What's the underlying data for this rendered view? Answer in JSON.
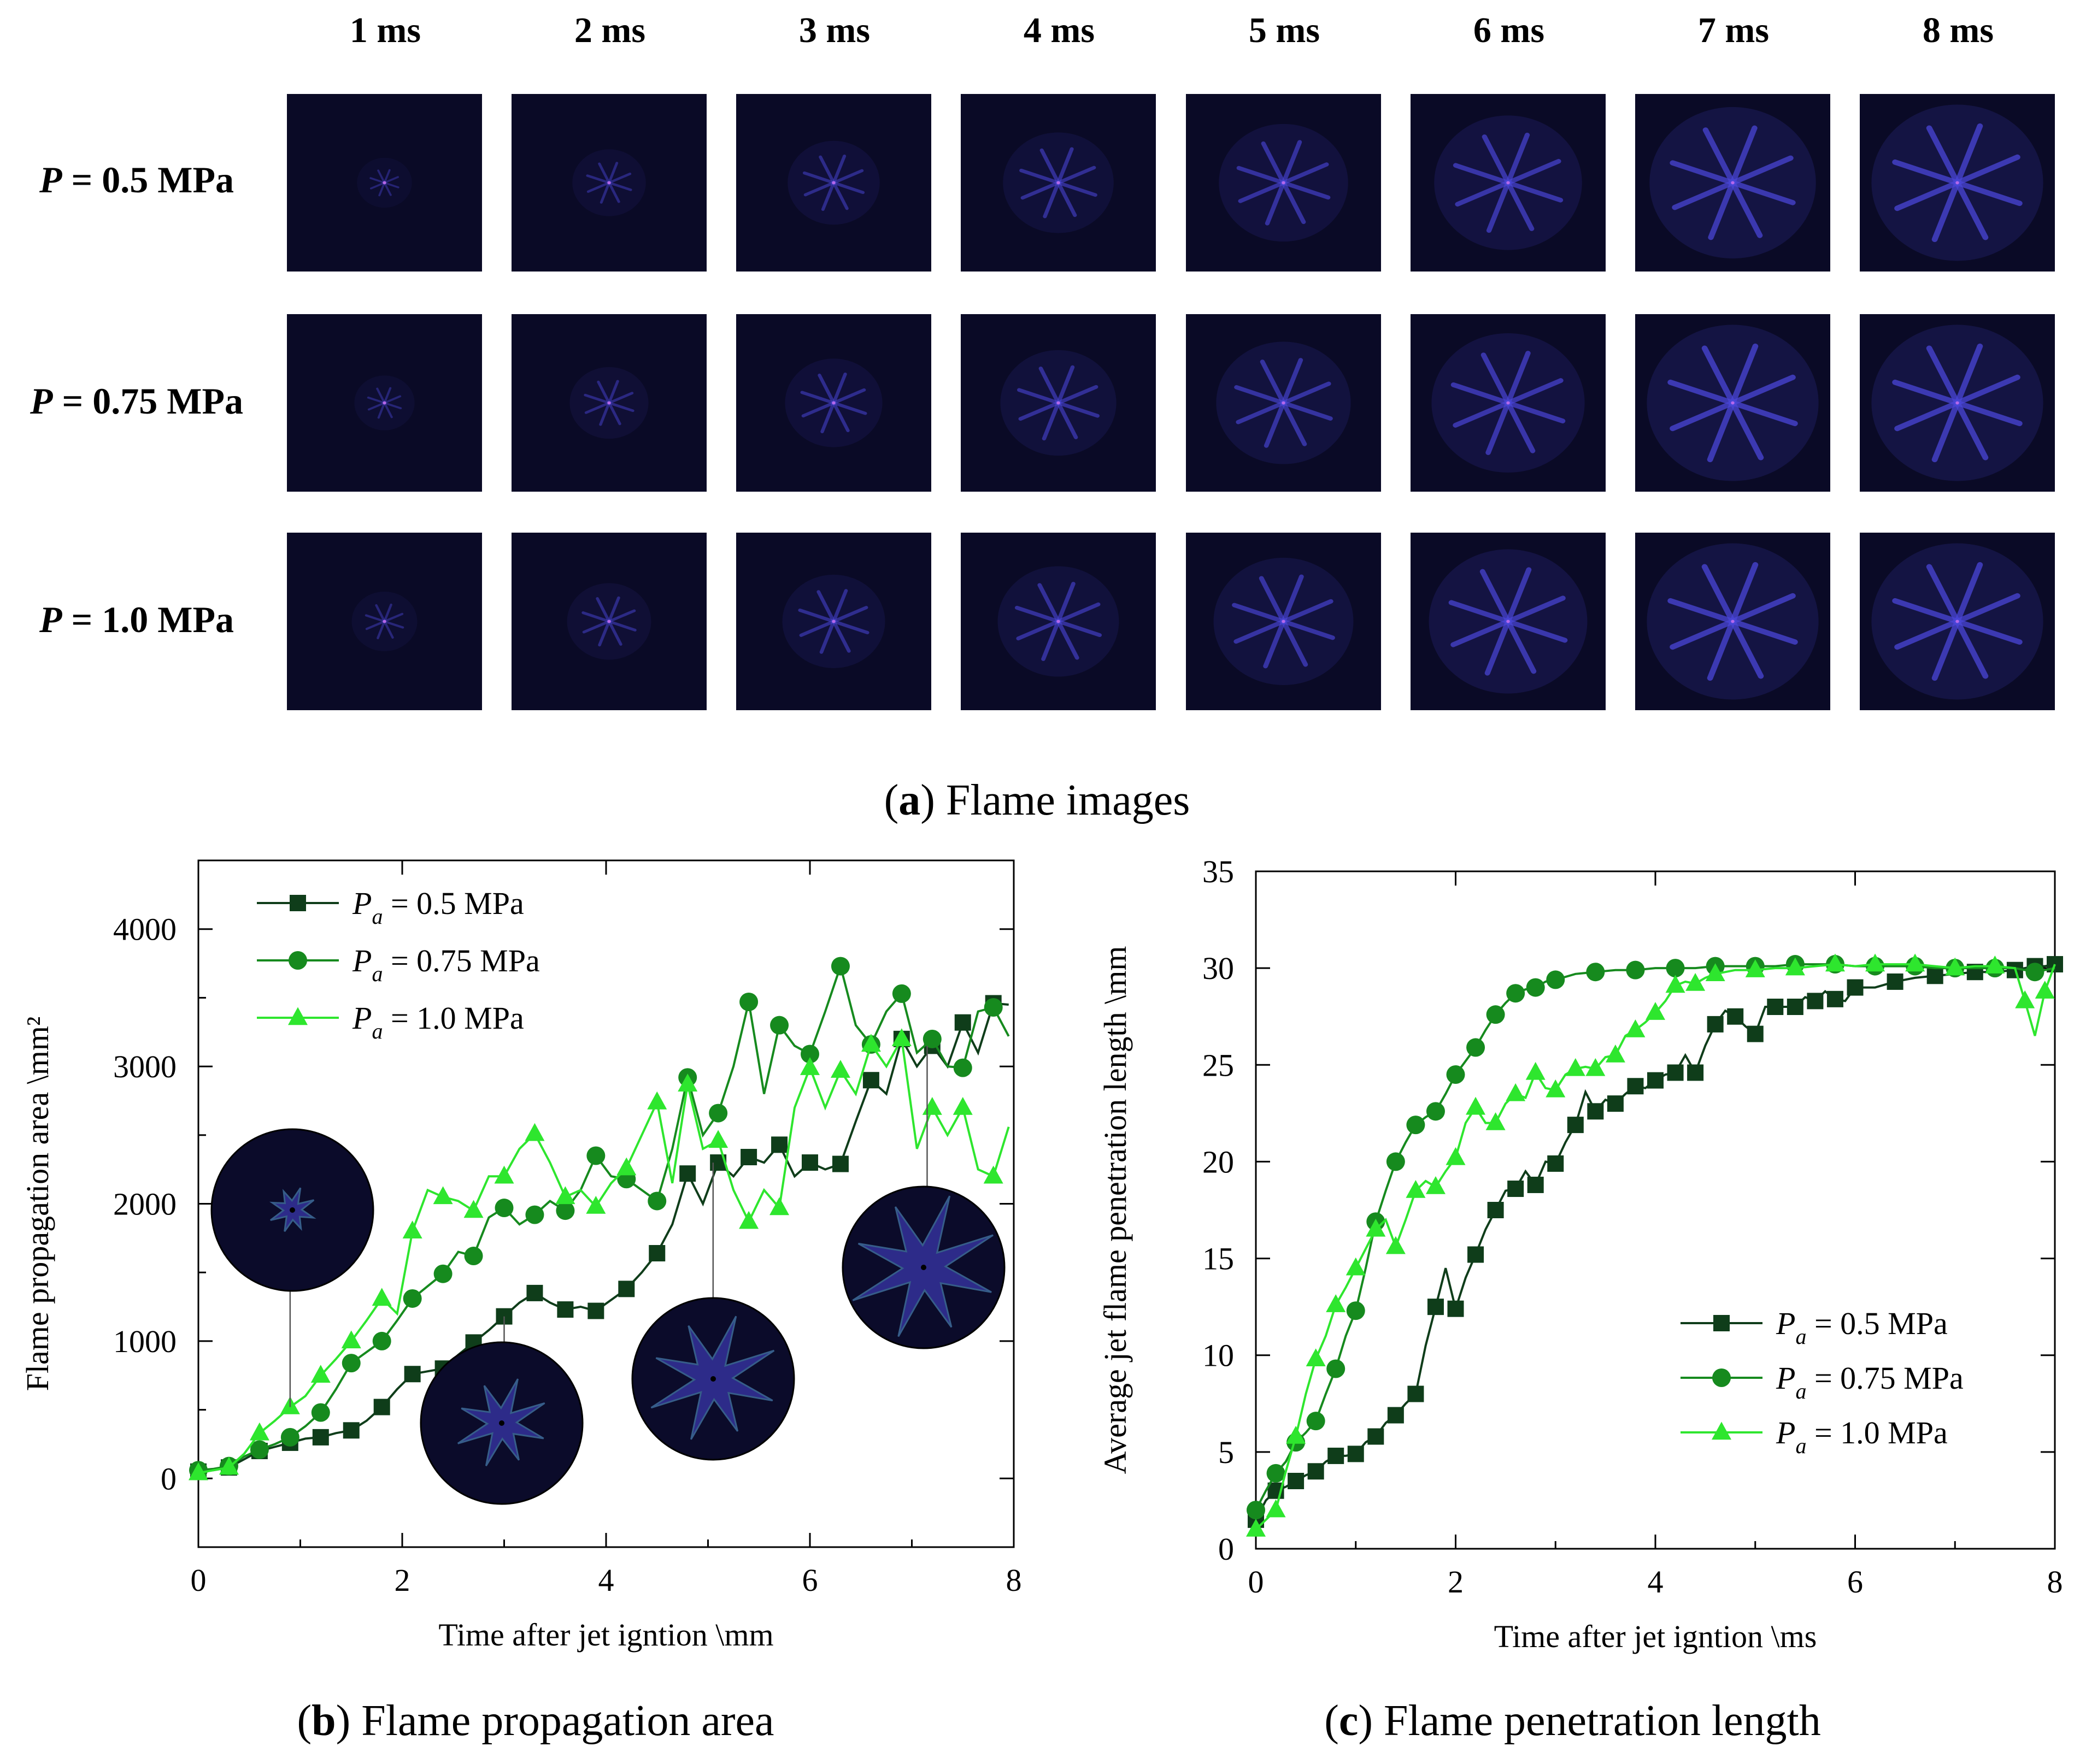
{
  "panel_a": {
    "time_labels": [
      "1 ms",
      "2 ms",
      "3 ms",
      "4 ms",
      "5 ms",
      "6 ms",
      "7 ms",
      "8 ms"
    ],
    "rows": [
      {
        "var": "P",
        "value": " = 0.5 MPa"
      },
      {
        "var": "P",
        "value": " = 0.75 MPa"
      },
      {
        "var": "P",
        "value": " = 1.0 MPa"
      }
    ],
    "caption_letter": "a",
    "caption_text": " Flame images"
  },
  "captions": {
    "b_letter": "b",
    "b_text": " Flame propagation area",
    "c_letter": "c",
    "c_text": " Flame penetration length"
  },
  "colors": {
    "s05": "#0f3d1a",
    "s075": "#168a1e",
    "s10": "#2ee62e",
    "tile_bg": "#0a0a26",
    "flame": "#4a46d8"
  },
  "chart_data": [
    {
      "type": "line",
      "panel": "b",
      "xlabel": "Time after jet igntion \\mm",
      "ylabel": "Flame propagation area \\mm²",
      "xlim": [
        0,
        8
      ],
      "ylim": [
        -500,
        4500
      ],
      "xticks": [
        0,
        2,
        4,
        6,
        8
      ],
      "yticks": [
        0,
        1000,
        2000,
        3000,
        4000
      ],
      "legend_position": "top-left",
      "series": [
        {
          "name": "P",
          "name_sub": "a",
          "name_rest": " = 0.5 MPa",
          "marker": "square",
          "color": "#0f3d1a",
          "x": [
            0,
            0.15,
            0.3,
            0.45,
            0.6,
            0.75,
            0.9,
            1.05,
            1.2,
            1.35,
            1.5,
            1.65,
            1.8,
            1.95,
            2.1,
            2.25,
            2.4,
            2.55,
            2.7,
            2.85,
            3.0,
            3.15,
            3.3,
            3.45,
            3.6,
            3.75,
            3.9,
            4.05,
            4.2,
            4.35,
            4.5,
            4.65,
            4.8,
            4.95,
            5.1,
            5.25,
            5.4,
            5.55,
            5.7,
            5.85,
            6.0,
            6.15,
            6.3,
            6.45,
            6.6,
            6.75,
            6.9,
            7.05,
            7.2,
            7.35,
            7.5,
            7.65,
            7.8,
            7.95
          ],
          "y": [
            50,
            60,
            80,
            140,
            200,
            230,
            260,
            290,
            300,
            330,
            350,
            420,
            520,
            650,
            760,
            780,
            800,
            900,
            990,
            1080,
            1180,
            1280,
            1350,
            1280,
            1230,
            1250,
            1220,
            1300,
            1380,
            1500,
            1640,
            1850,
            2220,
            2000,
            2300,
            2200,
            2340,
            2300,
            2430,
            2200,
            2300,
            2250,
            2290,
            2600,
            2900,
            2800,
            3200,
            3000,
            3150,
            3000,
            3320,
            3100,
            3460,
            3450
          ],
          "marker_every": 2
        },
        {
          "name": "P",
          "name_sub": "a",
          "name_rest": " = 0.75 MPa",
          "marker": "circle",
          "color": "#168a1e",
          "x": [
            0,
            0.15,
            0.3,
            0.45,
            0.6,
            0.75,
            0.9,
            1.05,
            1.2,
            1.35,
            1.5,
            1.65,
            1.8,
            1.95,
            2.1,
            2.25,
            2.4,
            2.55,
            2.7,
            2.85,
            3.0,
            3.15,
            3.3,
            3.45,
            3.6,
            3.75,
            3.9,
            4.05,
            4.2,
            4.35,
            4.5,
            4.65,
            4.8,
            4.95,
            5.1,
            5.25,
            5.4,
            5.55,
            5.7,
            5.85,
            6.0,
            6.15,
            6.3,
            6.45,
            6.6,
            6.75,
            6.9,
            7.05,
            7.2,
            7.35,
            7.5,
            7.65,
            7.8,
            7.95
          ],
          "y": [
            60,
            70,
            90,
            160,
            210,
            250,
            300,
            380,
            480,
            650,
            840,
            920,
            1000,
            1150,
            1310,
            1400,
            1490,
            1650,
            1620,
            1900,
            1970,
            1850,
            1920,
            2020,
            1950,
            2100,
            2350,
            2200,
            2180,
            2100,
            2020,
            2400,
            2920,
            2500,
            2660,
            3000,
            3470,
            2800,
            3300,
            3150,
            3090,
            3400,
            3730,
            3300,
            3160,
            3400,
            3530,
            3100,
            3200,
            3000,
            2990,
            3400,
            3430,
            3220
          ],
          "marker_every": 2
        },
        {
          "name": "P",
          "name_sub": "a",
          "name_rest": " = 1.0 MPa",
          "marker": "triangle",
          "color": "#2ee62e",
          "x": [
            0,
            0.15,
            0.3,
            0.45,
            0.6,
            0.75,
            0.9,
            1.05,
            1.2,
            1.35,
            1.5,
            1.65,
            1.8,
            1.95,
            2.1,
            2.25,
            2.4,
            2.55,
            2.7,
            2.85,
            3.0,
            3.15,
            3.3,
            3.45,
            3.6,
            3.75,
            3.9,
            4.05,
            4.2,
            4.35,
            4.5,
            4.65,
            4.8,
            4.95,
            5.1,
            5.25,
            5.4,
            5.55,
            5.7,
            5.85,
            6.0,
            6.15,
            6.3,
            6.45,
            6.6,
            6.75,
            6.9,
            7.05,
            7.2,
            7.35,
            7.5,
            7.65,
            7.8,
            7.95
          ],
          "y": [
            40,
            60,
            80,
            180,
            330,
            420,
            520,
            600,
            750,
            870,
            1000,
            1150,
            1310,
            1200,
            1800,
            2100,
            2050,
            2020,
            1950,
            2200,
            2200,
            2400,
            2510,
            2300,
            2050,
            2100,
            1980,
            2150,
            2260,
            2500,
            2740,
            2150,
            2870,
            2400,
            2460,
            2100,
            1870,
            2100,
            1970,
            2700,
            2990,
            2700,
            2970,
            2800,
            3160,
            3000,
            3200,
            2400,
            2700,
            2500,
            2700,
            2250,
            2200,
            2560
          ],
          "marker_every": 2
        }
      ],
      "insets": [
        {
          "anchor_x": 0.9,
          "anchor_y": 520,
          "pattern": "early"
        },
        {
          "anchor_x": 3.0,
          "anchor_y": 1180,
          "pattern": "mid"
        },
        {
          "anchor_x": 5.05,
          "anchor_y": 2300,
          "pattern": "late"
        },
        {
          "anchor_x": 7.15,
          "anchor_y": 3150,
          "pattern": "full"
        }
      ]
    },
    {
      "type": "line",
      "panel": "c",
      "xlabel": "Time after jet igntion \\ms",
      "ylabel": "Average jet flame penetration length \\mm",
      "xlim": [
        0,
        8
      ],
      "ylim": [
        0,
        35
      ],
      "xticks": [
        0,
        2,
        4,
        6,
        8
      ],
      "yticks": [
        0,
        5,
        10,
        15,
        20,
        25,
        30,
        35
      ],
      "legend_position": "bottom-right",
      "series": [
        {
          "name": "P",
          "name_sub": "a",
          "name_rest": " = 0.5 MPa",
          "marker": "square",
          "color": "#0f3d1a",
          "x": [
            0,
            0.1,
            0.2,
            0.3,
            0.4,
            0.5,
            0.6,
            0.7,
            0.8,
            0.9,
            1.0,
            1.1,
            1.2,
            1.3,
            1.4,
            1.5,
            1.6,
            1.7,
            1.8,
            1.9,
            2.0,
            2.1,
            2.2,
            2.3,
            2.4,
            2.5,
            2.6,
            2.7,
            2.8,
            2.9,
            3.0,
            3.1,
            3.2,
            3.3,
            3.4,
            3.5,
            3.6,
            3.7,
            3.8,
            3.9,
            4.0,
            4.1,
            4.2,
            4.3,
            4.4,
            4.5,
            4.6,
            4.7,
            4.8,
            4.9,
            5.0,
            5.1,
            5.2,
            5.3,
            5.4,
            5.5,
            5.6,
            5.7,
            5.8,
            5.9,
            6.0,
            6.2,
            6.4,
            6.6,
            6.8,
            7.0,
            7.2,
            7.4,
            7.6,
            7.7,
            7.8,
            7.9,
            8.0
          ],
          "y": [
            1.5,
            2.5,
            3.0,
            3.2,
            3.5,
            3.8,
            4.0,
            4.5,
            4.8,
            4.8,
            4.9,
            5.5,
            5.8,
            6.5,
            6.9,
            7.5,
            8.0,
            10.5,
            12.5,
            14.5,
            12.4,
            14.0,
            15.2,
            16.5,
            17.5,
            18.5,
            18.6,
            19.5,
            18.8,
            20.0,
            19.9,
            21.0,
            21.9,
            23.6,
            22.6,
            23.2,
            23.0,
            23.5,
            23.9,
            23.8,
            24.2,
            24.5,
            24.6,
            25.5,
            24.6,
            26.0,
            27.1,
            27.8,
            27.5,
            27.0,
            26.6,
            28.0,
            28.0,
            28.0,
            28.0,
            28.5,
            28.3,
            28.8,
            28.4,
            28.3,
            29.0,
            29.0,
            29.3,
            29.5,
            29.6,
            29.7,
            29.8,
            29.8,
            29.9,
            30.0,
            30.1,
            30.1,
            30.2
          ],
          "marker_every": 2
        },
        {
          "name": "P",
          "name_sub": "a",
          "name_rest": " = 0.75 MPa",
          "marker": "circle",
          "color": "#168a1e",
          "x": [
            0,
            0.1,
            0.2,
            0.3,
            0.4,
            0.5,
            0.6,
            0.7,
            0.8,
            0.9,
            1.0,
            1.1,
            1.2,
            1.3,
            1.4,
            1.5,
            1.6,
            1.7,
            1.8,
            1.9,
            2.0,
            2.1,
            2.2,
            2.3,
            2.4,
            2.5,
            2.6,
            2.7,
            2.8,
            2.9,
            3.0,
            3.2,
            3.4,
            3.6,
            3.8,
            4.0,
            4.2,
            4.4,
            4.6,
            4.8,
            5.0,
            5.2,
            5.4,
            5.6,
            5.8,
            6.0,
            6.2,
            6.4,
            6.6,
            6.8,
            7.0,
            7.2,
            7.4,
            7.6,
            7.8,
            8.0
          ],
          "y": [
            2.0,
            3.0,
            3.9,
            4.5,
            5.5,
            6.0,
            6.6,
            8.0,
            9.3,
            11.0,
            12.3,
            14.5,
            16.9,
            18.5,
            20.0,
            21.0,
            21.9,
            22.3,
            22.6,
            23.5,
            24.5,
            25.2,
            25.9,
            26.8,
            27.6,
            28.2,
            28.7,
            28.9,
            29.0,
            29.3,
            29.4,
            29.7,
            29.8,
            29.9,
            29.9,
            30.0,
            30.0,
            30.0,
            30.1,
            30.1,
            30.1,
            30.1,
            30.2,
            30.2,
            30.2,
            30.1,
            30.1,
            30.1,
            30.1,
            30.0,
            30.0,
            30.0,
            30.0,
            30.0,
            29.8,
            30.0
          ],
          "marker_every": 2
        },
        {
          "name": "P",
          "name_sub": "a",
          "name_rest": " = 1.0 MPa",
          "marker": "triangle",
          "color": "#2ee62e",
          "x": [
            0,
            0.1,
            0.2,
            0.3,
            0.4,
            0.5,
            0.6,
            0.7,
            0.8,
            0.9,
            1.0,
            1.1,
            1.2,
            1.3,
            1.4,
            1.5,
            1.6,
            1.7,
            1.8,
            1.9,
            2.0,
            2.1,
            2.2,
            2.3,
            2.4,
            2.5,
            2.6,
            2.7,
            2.8,
            2.9,
            3.0,
            3.1,
            3.2,
            3.3,
            3.4,
            3.5,
            3.6,
            3.7,
            3.8,
            3.9,
            4.0,
            4.1,
            4.2,
            4.3,
            4.4,
            4.5,
            4.6,
            4.8,
            5.0,
            5.2,
            5.4,
            5.6,
            5.8,
            6.0,
            6.2,
            6.4,
            6.6,
            6.8,
            7.0,
            7.2,
            7.4,
            7.6,
            7.7,
            7.8,
            7.9,
            8.0
          ],
          "y": [
            1.0,
            1.5,
            2.0,
            4.0,
            5.8,
            8.0,
            9.8,
            11.0,
            12.6,
            13.5,
            14.5,
            15.5,
            16.5,
            17.0,
            15.6,
            17.0,
            18.5,
            19.0,
            18.7,
            19.5,
            20.2,
            22.0,
            22.8,
            22.0,
            22.0,
            23.0,
            23.5,
            23.3,
            24.6,
            23.8,
            23.7,
            24.5,
            24.8,
            24.9,
            24.8,
            25.4,
            25.5,
            26.5,
            26.8,
            27.2,
            27.7,
            28.3,
            29.1,
            29.3,
            29.2,
            29.5,
            29.7,
            29.9,
            29.9,
            30.0,
            30.0,
            30.1,
            30.2,
            30.1,
            30.2,
            30.2,
            30.2,
            30.1,
            30.0,
            30.1,
            30.1,
            30.0,
            28.3,
            26.5,
            28.8,
            30.2
          ],
          "marker_every": 2
        }
      ]
    }
  ]
}
